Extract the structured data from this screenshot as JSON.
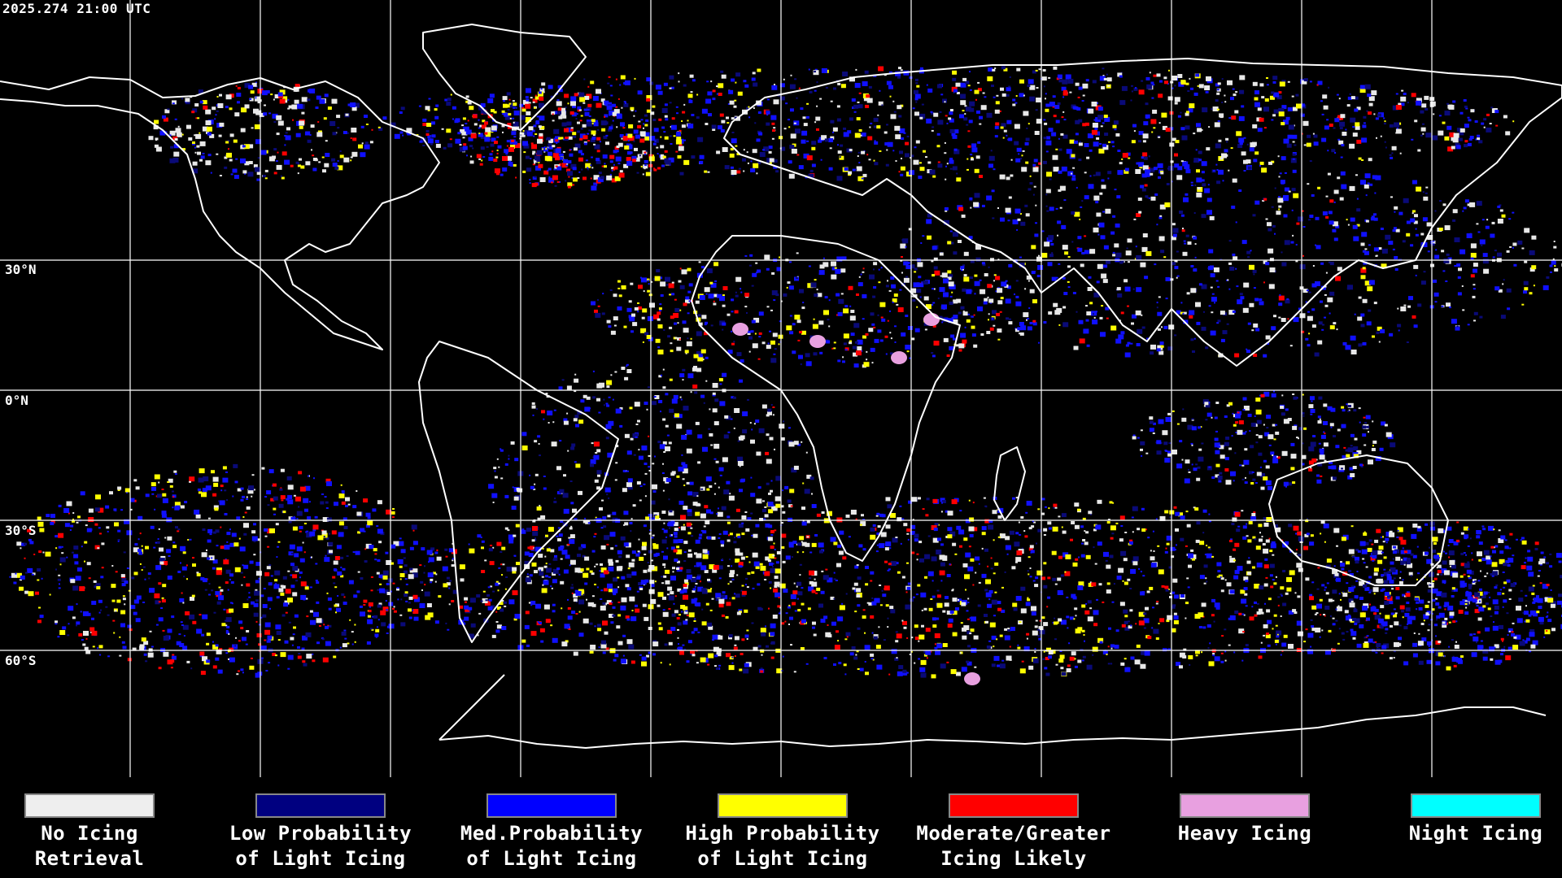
{
  "header": {
    "timestamp": "2025.274 21:00 UTC"
  },
  "map": {
    "lat_labels": [
      "30°N",
      "0°N",
      "30°S",
      "60°S"
    ],
    "colors": {
      "grid": "#ffffff",
      "coast": "#ffffff",
      "none": "#e8e8e8",
      "low": "#0a0a78",
      "med": "#1010ff",
      "high": "#ffff00",
      "moderate": "#ff0000",
      "heavy": "#e8a0e0",
      "night": "#00ffff"
    }
  },
  "legend": {
    "items": [
      {
        "label": "No Icing\nRetrieval",
        "color": "#eeeeee"
      },
      {
        "label": "Low Probability\nof Light Icing",
        "color": "#000080"
      },
      {
        "label": "Med.Probability\nof Light Icing",
        "color": "#0000ff"
      },
      {
        "label": "High Probability\nof Light Icing",
        "color": "#ffff00"
      },
      {
        "label": "Moderate/Greater\nIcing Likely",
        "color": "#ff0000"
      },
      {
        "label": "Heavy Icing",
        "color": "#e8a0e0"
      },
      {
        "label": "Night Icing",
        "color": "#00ffff"
      }
    ]
  }
}
